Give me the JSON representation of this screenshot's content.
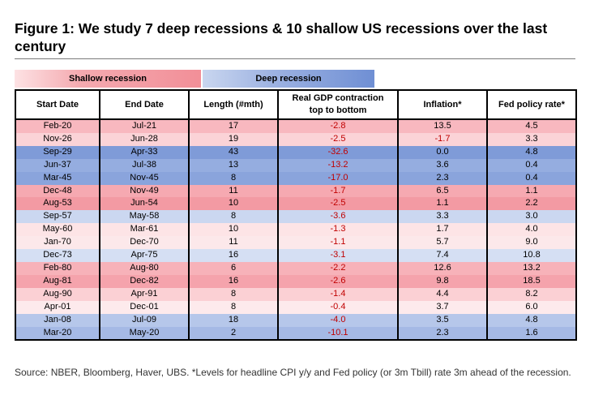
{
  "title": "Figure 1: We study 7 deep recessions & 10 shallow US recessions over the last century",
  "legend": {
    "shallow": "Shallow recession",
    "deep": "Deep recession"
  },
  "colors": {
    "shallow_light": "#fde2e4",
    "shallow_dark": "#f28f98",
    "deep_light": "#c9d6ef",
    "deep_dark": "#6f8fd4",
    "negative_text": "#c00000"
  },
  "table": {
    "headers": {
      "start": "Start Date",
      "end": "End Date",
      "length": "Length (#mth)",
      "gdp_line1": "Real GDP contraction",
      "gdp_line2": "top to bottom",
      "inflation": "Inflation*",
      "fed": "Fed policy rate*"
    },
    "rows": [
      {
        "start": "Feb-20",
        "end": "Jul-21",
        "length": "17",
        "gdp": "-2.8",
        "inflation": "13.5",
        "fed": "4.5",
        "bg": "#f8b8bf"
      },
      {
        "start": "Nov-26",
        "end": "Jun-28",
        "length": "19",
        "gdp": "-2.5",
        "inflation": "-1.7",
        "fed": "3.3",
        "bg": "#fbd3d7"
      },
      {
        "start": "Sep-29",
        "end": "Apr-33",
        "length": "43",
        "gdp": "-32.6",
        "inflation": "0.0",
        "fed": "4.8",
        "bg": "#7f9bd8"
      },
      {
        "start": "Jun-37",
        "end": "Jul-38",
        "length": "13",
        "gdp": "-13.2",
        "inflation": "3.6",
        "fed": "0.4",
        "bg": "#95ade0"
      },
      {
        "start": "Mar-45",
        "end": "Nov-45",
        "length": "8",
        "gdp": "-17.0",
        "inflation": "2.3",
        "fed": "0.4",
        "bg": "#8aa4dc"
      },
      {
        "start": "Dec-48",
        "end": "Nov-49",
        "length": "11",
        "gdp": "-1.7",
        "inflation": "6.5",
        "fed": "1.1",
        "bg": "#f6a9b1"
      },
      {
        "start": "Aug-53",
        "end": "Jun-54",
        "length": "10",
        "gdp": "-2.5",
        "inflation": "1.1",
        "fed": "2.2",
        "bg": "#f39aa3"
      },
      {
        "start": "Sep-57",
        "end": "May-58",
        "length": "8",
        "gdp": "-3.6",
        "inflation": "3.3",
        "fed": "3.0",
        "bg": "#cbd7f0"
      },
      {
        "start": "May-60",
        "end": "Mar-61",
        "length": "10",
        "gdp": "-1.3",
        "inflation": "1.7",
        "fed": "4.0",
        "bg": "#fde4e6"
      },
      {
        "start": "Jan-70",
        "end": "Dec-70",
        "length": "11",
        "gdp": "-1.1",
        "inflation": "5.7",
        "fed": "9.0",
        "bg": "#fce8ea"
      },
      {
        "start": "Dec-73",
        "end": "Apr-75",
        "length": "16",
        "gdp": "-3.1",
        "inflation": "7.4",
        "fed": "10.8",
        "bg": "#d5dff3"
      },
      {
        "start": "Feb-80",
        "end": "Aug-80",
        "length": "6",
        "gdp": "-2.2",
        "inflation": "12.6",
        "fed": "13.2",
        "bg": "#f7b2b9"
      },
      {
        "start": "Aug-81",
        "end": "Dec-82",
        "length": "16",
        "gdp": "-2.6",
        "inflation": "9.8",
        "fed": "18.5",
        "bg": "#f5a3ac"
      },
      {
        "start": "Aug-90",
        "end": "Apr-91",
        "length": "8",
        "gdp": "-1.4",
        "inflation": "4.4",
        "fed": "8.2",
        "bg": "#fbd0d4"
      },
      {
        "start": "Apr-01",
        "end": "Dec-01",
        "length": "8",
        "gdp": "-0.4",
        "inflation": "3.7",
        "fed": "6.0",
        "bg": "#fdeaec"
      },
      {
        "start": "Jan-08",
        "end": "Jul-09",
        "length": "18",
        "gdp": "-4.0",
        "inflation": "3.5",
        "fed": "4.8",
        "bg": "#b6c7ea"
      },
      {
        "start": "Mar-20",
        "end": "May-20",
        "length": "2",
        "gdp": "-10.1",
        "inflation": "2.3",
        "fed": "1.6",
        "bg": "#a5b9e5"
      }
    ]
  },
  "source": "Source: NBER, Bloomberg, Haver, UBS. *Levels for headline CPI y/y and Fed policy (or 3m Tbill) rate 3m ahead of the recession."
}
